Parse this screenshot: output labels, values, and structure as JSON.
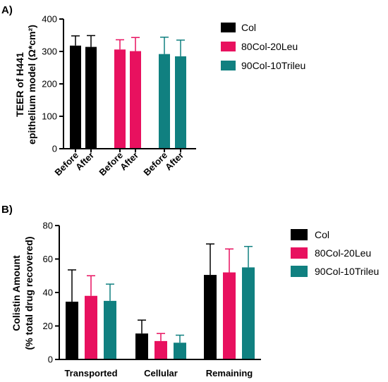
{
  "colors": {
    "Col": "#000000",
    "80Col-20Leu": "#e8115f",
    "90Col-10Trileu": "#108080"
  },
  "panels": [
    {
      "label": "A)",
      "ylabel_line1": "TEER of H441",
      "ylabel_line2": "epithelium  model (Ω*cm²)",
      "legend": [
        "Col",
        "80Col-20Leu",
        "90Col-10Trileu"
      ],
      "chart_data": {
        "type": "bar",
        "ylim": [
          0,
          400
        ],
        "yticks": [
          0,
          100,
          200,
          300,
          400
        ],
        "categories": [
          "Before",
          "After",
          "Before",
          "After",
          "Before",
          "After"
        ],
        "groups": [
          {
            "series": "Col",
            "bars": [
              {
                "label": "Before",
                "value": 318,
                "error": 30
              },
              {
                "label": "After",
                "value": 314,
                "error": 35
              }
            ]
          },
          {
            "series": "80Col-20Leu",
            "bars": [
              {
                "label": "Before",
                "value": 306,
                "error": 30
              },
              {
                "label": "After",
                "value": 301,
                "error": 42
              }
            ]
          },
          {
            "series": "90Col-10Trileu",
            "bars": [
              {
                "label": "Before",
                "value": 292,
                "error": 52
              },
              {
                "label": "After",
                "value": 285,
                "error": 50
              }
            ]
          }
        ],
        "grid": false,
        "legend_position": "right"
      }
    },
    {
      "label": "B)",
      "ylabel_line1": "Colistin Amount",
      "ylabel_line2": "(% total drug recovered)",
      "legend": [
        "Col",
        "80Col-20Leu",
        "90Col-10Trileu"
      ],
      "chart_data": {
        "type": "bar",
        "ylim": [
          0,
          80
        ],
        "yticks": [
          0,
          20,
          40,
          60,
          80
        ],
        "categories": [
          "Transported",
          "Cellular",
          "Remaining"
        ],
        "series": [
          {
            "name": "Col",
            "values": [
              34.5,
              15.5,
              50.5
            ],
            "errors": [
              19,
              8,
              18.5
            ]
          },
          {
            "name": "80Col-20Leu",
            "values": [
              38,
              11,
              52
            ],
            "errors": [
              12,
              4.5,
              14
            ]
          },
          {
            "name": "90Col-10Trileu",
            "values": [
              35,
              10,
              55
            ],
            "errors": [
              10,
              4.5,
              12.5
            ]
          }
        ],
        "grid": false,
        "legend_position": "right"
      }
    }
  ]
}
